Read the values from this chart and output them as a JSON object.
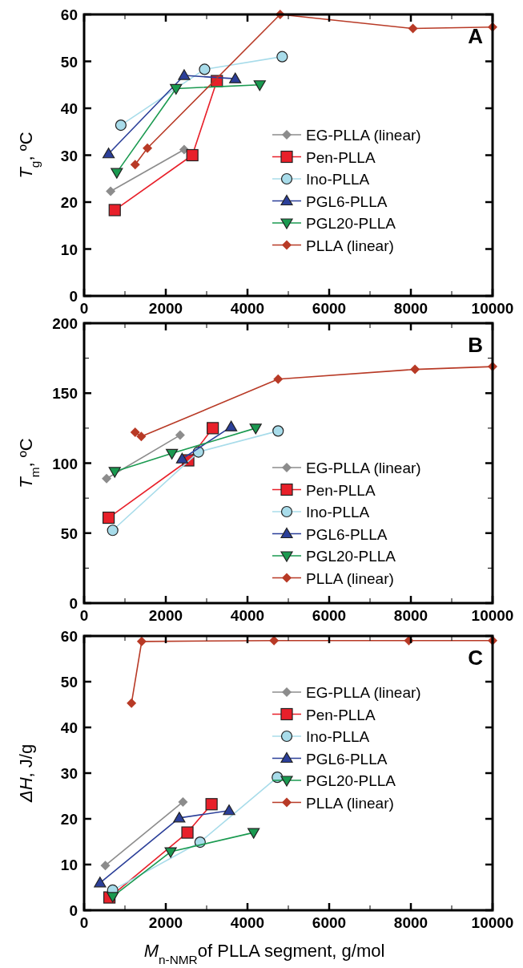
{
  "chart_data": [
    {
      "type": "line",
      "ylabel": "T$_{g}$, ºC",
      "annotations": [
        "A"
      ],
      "xlim": [
        0,
        10000
      ],
      "ylim": [
        0,
        60
      ],
      "xticks": [
        0,
        {
          "value": 1000,
          "label": null
        },
        2000,
        {
          "value": 3000,
          "label": null
        },
        4000,
        {
          "value": 5000,
          "label": null
        },
        6000,
        {
          "value": 7000,
          "label": null
        },
        8000,
        {
          "value": 9000,
          "label": null
        },
        10000
      ],
      "yticks": [
        0,
        10,
        20,
        30,
        40,
        50,
        60
      ],
      "legend": "right",
      "line_style": "solid",
      "series": [
        {
          "name": "EG-PLLA (linear)",
          "color": "#8c8c8c",
          "marker": "diamond",
          "x": [
            650,
            2450
          ],
          "values": [
            22.3,
            31.2
          ]
        },
        {
          "name": "Pen-PLLA",
          "color": "#e8202a",
          "marker": "square",
          "x": [
            750,
            2650,
            3250
          ],
          "values": [
            18.3,
            30,
            45.8
          ]
        },
        {
          "name": "Ino-PLLA",
          "color": "#a8dcea",
          "marker": "circle",
          "x": [
            900,
            2950,
            4850
          ],
          "values": [
            36.4,
            48.3,
            51
          ]
        },
        {
          "name": "PGL6-PLLA",
          "color": "#2b3f99",
          "marker": "triangle",
          "x": [
            600,
            2450,
            3700
          ],
          "values": [
            30.3,
            47,
            46.3
          ]
        },
        {
          "name": "PGL20-PLLA",
          "color": "#1a9a50",
          "marker": "triangle-down",
          "x": [
            800,
            2250,
            4300
          ],
          "values": [
            26.3,
            44.2,
            45
          ]
        },
        {
          "name": "PLLA (linear)",
          "color": "#b83a26",
          "marker": "diamond",
          "x": [
            1250,
            1550,
            4800,
            8050,
            10000
          ],
          "values": [
            28,
            31.5,
            60,
            57,
            57.3
          ]
        }
      ]
    },
    {
      "type": "line",
      "ylabel": "T$_{m}$, ºC",
      "annotations": [
        "B"
      ],
      "xlim": [
        0,
        10000
      ],
      "ylim": [
        0,
        200
      ],
      "xticks": [
        0,
        {
          "value": 1000,
          "label": null
        },
        2000,
        {
          "value": 3000,
          "label": null
        },
        4000,
        {
          "value": 5000,
          "label": null
        },
        6000,
        {
          "value": 7000,
          "label": null
        },
        8000,
        {
          "value": 9000,
          "label": null
        },
        10000
      ],
      "yticks": [
        0,
        {
          "value": 25,
          "label": null
        },
        50,
        {
          "value": 75,
          "label": null
        },
        100,
        {
          "value": 125,
          "label": null
        },
        150,
        {
          "value": 175,
          "label": null
        },
        200
      ],
      "legend": "right",
      "line_style": "solid",
      "series": [
        {
          "name": "EG-PLLA (linear)",
          "color": "#8c8c8c",
          "marker": "diamond",
          "x": [
            550,
            2350
          ],
          "values": [
            89,
            120
          ]
        },
        {
          "name": "Pen-PLLA",
          "color": "#e8202a",
          "marker": "square",
          "x": [
            600,
            2550,
            3150
          ],
          "values": [
            61,
            102,
            125
          ]
        },
        {
          "name": "Ino-PLLA",
          "color": "#a8dcea",
          "marker": "circle",
          "x": [
            700,
            2800,
            4750
          ],
          "values": [
            52,
            108,
            123
          ]
        },
        {
          "name": "PGL6-PLLA",
          "color": "#2b3f99",
          "marker": "triangle",
          "x": [
            2400,
            3600
          ],
          "values": [
            103,
            126
          ]
        },
        {
          "name": "PGL20-PLLA",
          "color": "#1a9a50",
          "marker": "triangle-down",
          "x": [
            750,
            2150,
            4200
          ],
          "values": [
            94,
            107,
            125
          ]
        },
        {
          "name": "PLLA (linear)",
          "color": "#b83a26",
          "marker": "diamond",
          "x": [
            1250,
            1400,
            4750,
            8100,
            10000
          ],
          "values": [
            122,
            119,
            160,
            167,
            169
          ]
        }
      ]
    },
    {
      "type": "line",
      "ylabel": "ΔH, J/g",
      "xlabel": "M$_{n-NMR}$of PLLA segment, g/mol",
      "annotations": [
        "C"
      ],
      "xlim": [
        0,
        10000
      ],
      "ylim": [
        0,
        60
      ],
      "xticks": [
        0,
        {
          "value": 1000,
          "label": null
        },
        2000,
        {
          "value": 3000,
          "label": null
        },
        4000,
        {
          "value": 5000,
          "label": null
        },
        6000,
        {
          "value": 7000,
          "label": null
        },
        8000,
        {
          "value": 9000,
          "label": null
        },
        10000
      ],
      "yticks": [
        0,
        10,
        20,
        30,
        40,
        50,
        60
      ],
      "legend": "right",
      "line_style": "solid",
      "series": [
        {
          "name": "EG-PLLA (linear)",
          "color": "#8c8c8c",
          "marker": "diamond",
          "x": [
            520,
            2420
          ],
          "values": [
            9.8,
            23.7
          ]
        },
        {
          "name": "Pen-PLLA",
          "color": "#e8202a",
          "marker": "square",
          "x": [
            620,
            2530,
            3120
          ],
          "values": [
            2.8,
            17,
            23.2
          ]
        },
        {
          "name": "Ino-PLLA",
          "color": "#a8dcea",
          "marker": "circle",
          "x": [
            700,
            2840,
            4730
          ],
          "values": [
            4.4,
            14.9,
            29.1
          ]
        },
        {
          "name": "PGL6-PLLA",
          "color": "#2b3f99",
          "marker": "triangle",
          "x": [
            390,
            2330,
            3550
          ],
          "values": [
            6,
            20.2,
            21.8
          ]
        },
        {
          "name": "PGL20-PLLA",
          "color": "#1a9a50",
          "marker": "triangle-down",
          "x": [
            700,
            2120,
            4150
          ],
          "values": [
            3,
            12.8,
            17
          ]
        },
        {
          "name": "PLLA (linear)",
          "color": "#b83a26",
          "marker": "diamond",
          "x": [
            1160,
            1410,
            4650,
            7950,
            10000
          ],
          "values": [
            45.3,
            58.8,
            59,
            59,
            59
          ]
        }
      ]
    }
  ]
}
